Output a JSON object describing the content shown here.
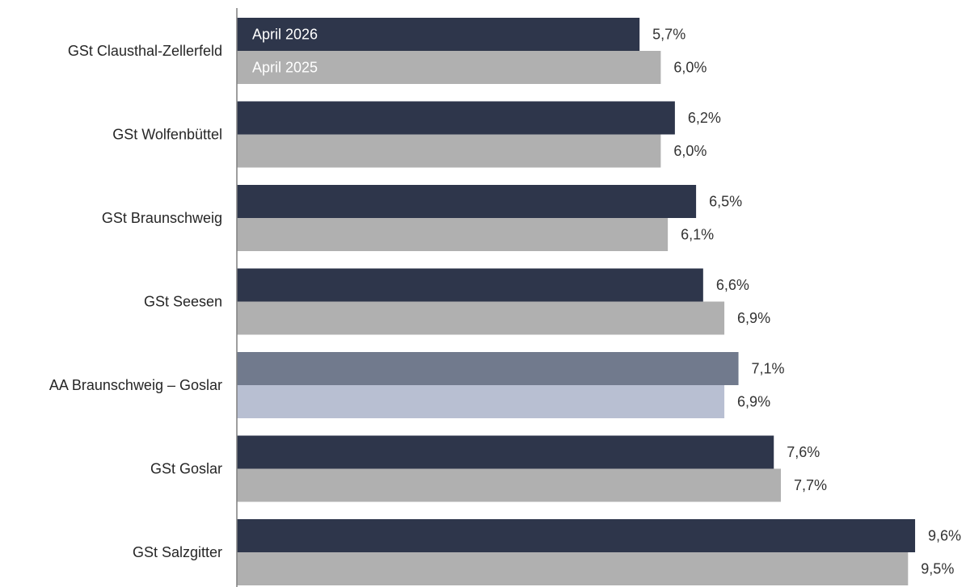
{
  "chart_data": {
    "type": "bar",
    "orientation": "horizontal",
    "categories": [
      "GSt Clausthal-Zellerfeld",
      "GSt Wolfenbüttel",
      "GSt Braunschweig",
      "GSt Seesen",
      "AA Braunschweig – Goslar",
      "GSt Goslar",
      "GSt Salzgitter"
    ],
    "series": [
      {
        "name": "April 2026",
        "values": [
          5.7,
          6.2,
          6.5,
          6.6,
          7.1,
          7.6,
          9.6
        ],
        "labels": [
          "5,7%",
          "6,2%",
          "6,5%",
          "6,6%",
          "7,1%",
          "7,6%",
          "9,6%"
        ],
        "color": "#2e364b",
        "highlight_color": "#717a8d"
      },
      {
        "name": "April 2025",
        "values": [
          6.0,
          6.0,
          6.1,
          6.9,
          6.9,
          7.7,
          9.5
        ],
        "labels": [
          "6,0%",
          "6,0%",
          "6,1%",
          "6,9%",
          "6,9%",
          "7,7%",
          "9,5%"
        ],
        "color": "#b0b0b0",
        "highlight_color": "#b8bfd2"
      }
    ],
    "highlight_category": "AA Braunschweig – Goslar",
    "xlim": [
      0,
      10
    ],
    "grid": false,
    "legend": "inside-first-bars",
    "axis_color": "#7f7f7f"
  }
}
